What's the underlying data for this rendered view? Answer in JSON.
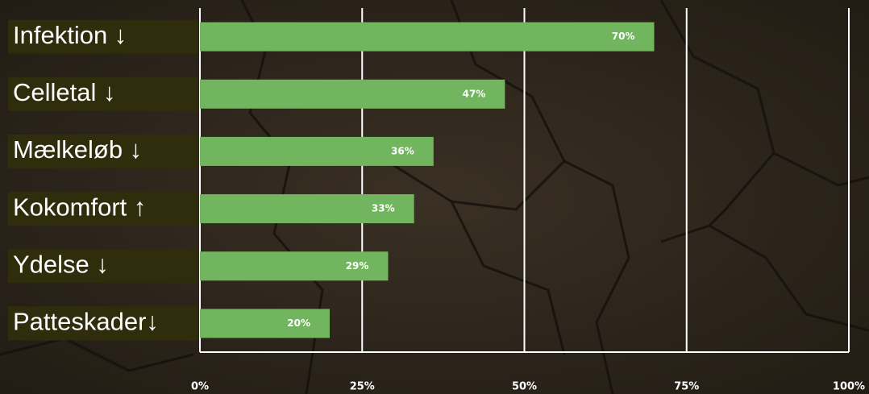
{
  "chart_data": {
    "type": "bar",
    "orientation": "horizontal",
    "categories": [
      "Infektion ↓",
      "Celletal ↓",
      "Mælkeløb ↓",
      "Kokomfort ↑",
      "Ydelse ↓",
      "Patteskader↓"
    ],
    "values": [
      70,
      47,
      36,
      33,
      29,
      20
    ],
    "value_labels": [
      "70%",
      "47%",
      "36%",
      "33%",
      "29%",
      "20%"
    ],
    "color": "#71b65e",
    "xlim": [
      0,
      100
    ],
    "xticks": [
      {
        "value": 0,
        "label": "0%"
      },
      {
        "value": 25,
        "label": "25%"
      },
      {
        "value": 50,
        "label": "50%"
      },
      {
        "value": 75,
        "label": "75%"
      },
      {
        "value": 100,
        "label": "100%"
      }
    ],
    "grid": true
  }
}
